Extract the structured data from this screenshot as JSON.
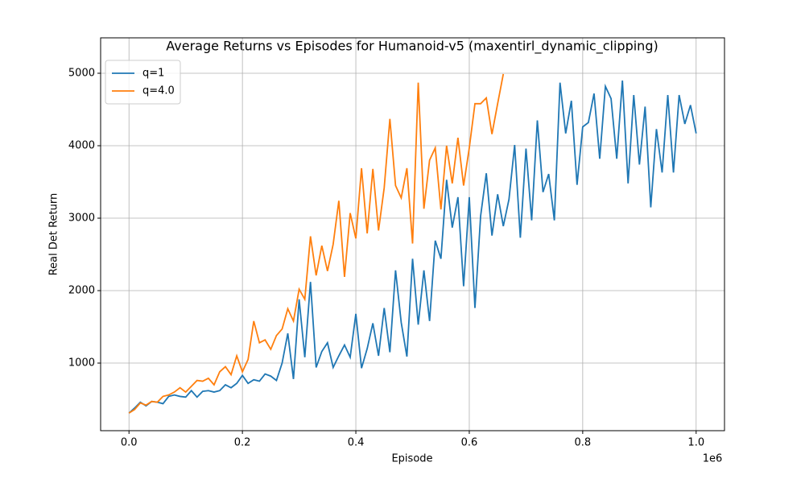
{
  "chart_data": {
    "type": "line",
    "title": "Average Returns vs Episodes for Humanoid-v5 (maxentirl_dynamic_clipping)",
    "x_label": "Episode",
    "y_label": "Real Det Return",
    "x_offset_label": "1e6",
    "xlim": [
      -50000,
      1050000
    ],
    "ylim": [
      67,
      5489
    ],
    "xticks": [
      {
        "value": 0,
        "label": "0.0"
      },
      {
        "value": 200000,
        "label": "0.2"
      },
      {
        "value": 400000,
        "label": "0.4"
      },
      {
        "value": 600000,
        "label": "0.6"
      },
      {
        "value": 800000,
        "label": "0.8"
      },
      {
        "value": 1000000,
        "label": "1.0"
      }
    ],
    "yticks": [
      1000,
      2000,
      3000,
      4000,
      5000
    ],
    "grid": true,
    "legend": "upper left",
    "series": [
      {
        "name": "q=1",
        "color": "#1f77b4",
        "x": [
          0,
          10000,
          20000,
          30000,
          40000,
          50000,
          60000,
          70000,
          80000,
          90000,
          100000,
          110000,
          120000,
          130000,
          140000,
          150000,
          160000,
          170000,
          180000,
          190000,
          200000,
          210000,
          220000,
          230000,
          240000,
          250000,
          260000,
          270000,
          280000,
          290000,
          300000,
          310000,
          320000,
          330000,
          340000,
          350000,
          360000,
          370000,
          380000,
          390000,
          400000,
          410000,
          420000,
          430000,
          440000,
          450000,
          460000,
          470000,
          480000,
          490000,
          500000,
          510000,
          520000,
          530000,
          540000,
          550000,
          560000,
          570000,
          580000,
          590000,
          600000,
          610000,
          620000,
          630000,
          640000,
          650000,
          660000,
          670000,
          680000,
          690000,
          700000,
          710000,
          720000,
          730000,
          740000,
          750000,
          760000,
          770000,
          780000,
          790000,
          800000,
          810000,
          820000,
          830000,
          840000,
          850000,
          860000,
          870000,
          880000,
          890000,
          900000,
          910000,
          920000,
          930000,
          940000,
          950000,
          960000,
          970000,
          980000,
          990000,
          1000000
        ],
        "values": [
          310,
          380,
          460,
          410,
          470,
          460,
          440,
          540,
          560,
          540,
          530,
          620,
          530,
          610,
          620,
          600,
          620,
          700,
          660,
          720,
          830,
          720,
          770,
          750,
          850,
          820,
          760,
          1000,
          1410,
          780,
          1880,
          1080,
          2120,
          940,
          1160,
          1280,
          940,
          1100,
          1250,
          1080,
          1680,
          930,
          1200,
          1550,
          1100,
          1760,
          1150,
          2280,
          1560,
          1090,
          2440,
          1530,
          2280,
          1580,
          2690,
          2440,
          3530,
          2870,
          3290,
          2060,
          3290,
          1760,
          3030,
          3620,
          2760,
          3330,
          2890,
          3260,
          4010,
          2730,
          3960,
          2970,
          4350,
          3360,
          3610,
          2970,
          4870,
          4170,
          4620,
          3460,
          4260,
          4320,
          4720,
          3820,
          4820,
          4650,
          3820,
          4900,
          3480,
          4700,
          3740,
          4540,
          3150,
          4230,
          3630,
          4700,
          3630,
          4700,
          4300,
          4560,
          4170
        ]
      },
      {
        "name": "q=4.0",
        "color": "#ff7f0e",
        "x": [
          0,
          10000,
          20000,
          30000,
          40000,
          50000,
          60000,
          70000,
          80000,
          90000,
          100000,
          110000,
          120000,
          130000,
          140000,
          150000,
          160000,
          170000,
          180000,
          190000,
          200000,
          210000,
          220000,
          230000,
          240000,
          250000,
          260000,
          270000,
          280000,
          290000,
          300000,
          310000,
          320000,
          330000,
          340000,
          350000,
          360000,
          370000,
          380000,
          390000,
          400000,
          410000,
          420000,
          430000,
          440000,
          450000,
          460000,
          470000,
          480000,
          490000,
          500000,
          510000,
          520000,
          530000,
          540000,
          550000,
          560000,
          570000,
          580000,
          590000,
          600000,
          610000,
          620000,
          630000,
          640000,
          650000,
          660000
        ],
        "values": [
          310,
          360,
          450,
          420,
          470,
          460,
          540,
          560,
          600,
          660,
          600,
          680,
          760,
          750,
          790,
          700,
          880,
          950,
          840,
          1100,
          880,
          1050,
          1580,
          1280,
          1320,
          1190,
          1380,
          1470,
          1750,
          1580,
          2020,
          1880,
          2750,
          2210,
          2620,
          2270,
          2640,
          3240,
          2190,
          3070,
          2720,
          3690,
          2790,
          3680,
          2830,
          3420,
          4370,
          3450,
          3280,
          3690,
          2650,
          4870,
          3130,
          3800,
          3970,
          3120,
          4000,
          3480,
          4110,
          3450,
          3970,
          4580,
          4580,
          4660,
          4160,
          4580,
          4990
        ]
      }
    ]
  }
}
